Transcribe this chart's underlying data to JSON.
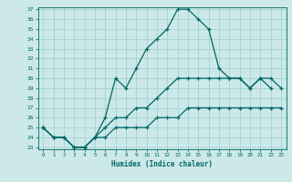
{
  "xlabel": "Humidex (Indice chaleur)",
  "bg_color": "#cce8e8",
  "line_color": "#006868",
  "grid_color": "#9ecece",
  "hours": [
    0,
    1,
    2,
    3,
    4,
    5,
    6,
    7,
    8,
    9,
    10,
    11,
    12,
    13,
    14,
    15,
    16,
    17,
    18,
    19,
    20,
    21,
    22,
    23
  ],
  "line_top": [
    25,
    24,
    24,
    23,
    23,
    24,
    26,
    30,
    29,
    31,
    33,
    34,
    35,
    37,
    37,
    36,
    35,
    31,
    30,
    30,
    29,
    30,
    29,
    null
  ],
  "line_mid": [
    25,
    24,
    24,
    23,
    23,
    24,
    25,
    26,
    26,
    27,
    27,
    28,
    29,
    30,
    30,
    30,
    30,
    30,
    30,
    30,
    29,
    30,
    30,
    29
  ],
  "line_bot": [
    25,
    24,
    24,
    23,
    23,
    24,
    24,
    25,
    25,
    25,
    25,
    26,
    26,
    26,
    27,
    27,
    27,
    27,
    27,
    27,
    27,
    27,
    27,
    27
  ],
  "ylim": [
    23,
    37
  ],
  "xlim": [
    -0.5,
    23.5
  ],
  "yticks": [
    23,
    24,
    25,
    26,
    27,
    28,
    29,
    30,
    31,
    32,
    33,
    34,
    35,
    36,
    37
  ],
  "xticks": [
    0,
    1,
    2,
    3,
    4,
    5,
    6,
    7,
    8,
    9,
    10,
    11,
    12,
    13,
    14,
    15,
    16,
    17,
    18,
    19,
    20,
    21,
    22,
    23
  ]
}
